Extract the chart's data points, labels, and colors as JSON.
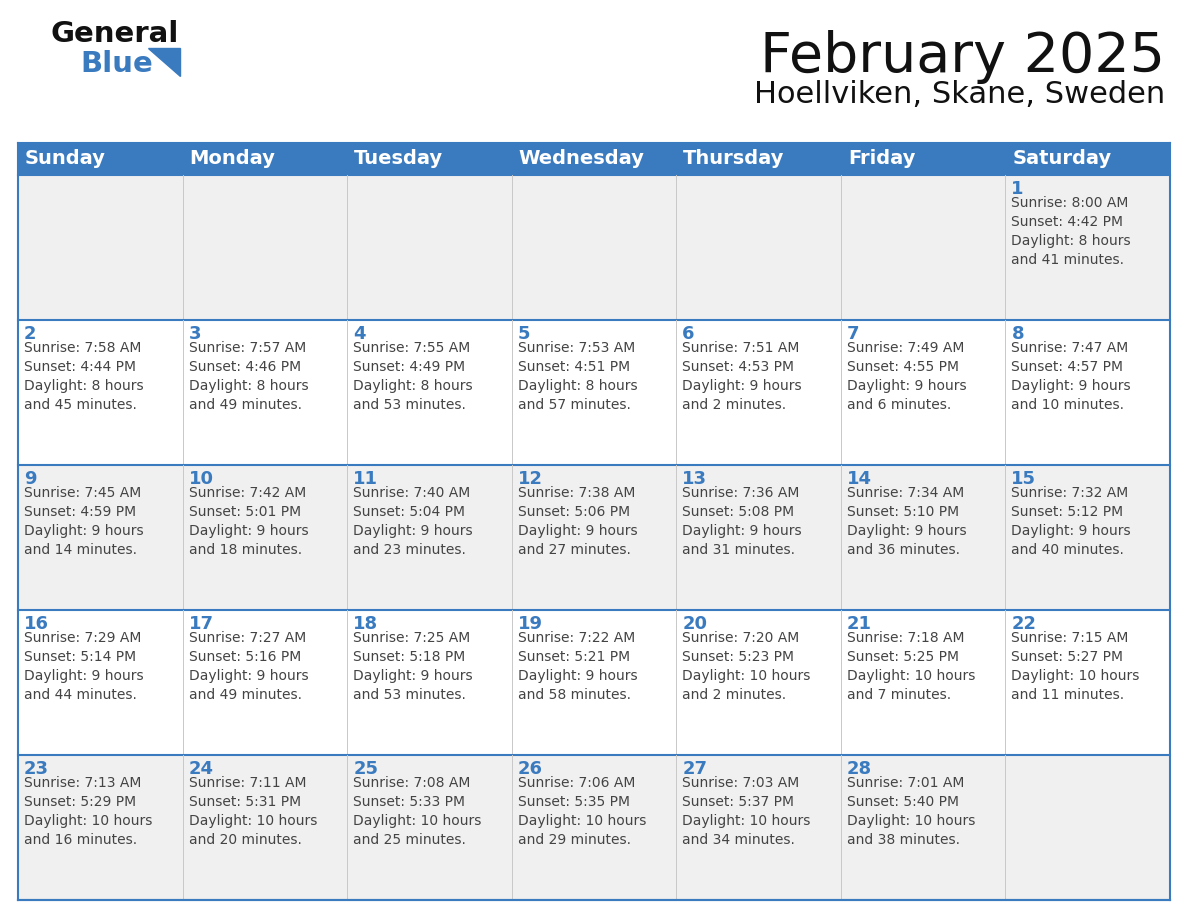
{
  "title": "February 2025",
  "subtitle": "Hoellviken, Skane, Sweden",
  "header_color": "#3a7abf",
  "header_text_color": "#ffffff",
  "weekdays": [
    "Sunday",
    "Monday",
    "Tuesday",
    "Wednesday",
    "Thursday",
    "Friday",
    "Saturday"
  ],
  "bg_color": "#ffffff",
  "cell_bg_row0": "#f0f0f0",
  "cell_bg_row1": "#ffffff",
  "cell_bg_row2": "#f0f0f0",
  "cell_bg_row3": "#ffffff",
  "cell_bg_row4": "#f0f0f0",
  "border_color": "#3a7abf",
  "day_text_color": "#3a7abf",
  "info_text_color": "#444444",
  "calendar": [
    [
      {
        "day": null,
        "info": null
      },
      {
        "day": null,
        "info": null
      },
      {
        "day": null,
        "info": null
      },
      {
        "day": null,
        "info": null
      },
      {
        "day": null,
        "info": null
      },
      {
        "day": null,
        "info": null
      },
      {
        "day": "1",
        "info": "Sunrise: 8:00 AM\nSunset: 4:42 PM\nDaylight: 8 hours\nand 41 minutes."
      }
    ],
    [
      {
        "day": "2",
        "info": "Sunrise: 7:58 AM\nSunset: 4:44 PM\nDaylight: 8 hours\nand 45 minutes."
      },
      {
        "day": "3",
        "info": "Sunrise: 7:57 AM\nSunset: 4:46 PM\nDaylight: 8 hours\nand 49 minutes."
      },
      {
        "day": "4",
        "info": "Sunrise: 7:55 AM\nSunset: 4:49 PM\nDaylight: 8 hours\nand 53 minutes."
      },
      {
        "day": "5",
        "info": "Sunrise: 7:53 AM\nSunset: 4:51 PM\nDaylight: 8 hours\nand 57 minutes."
      },
      {
        "day": "6",
        "info": "Sunrise: 7:51 AM\nSunset: 4:53 PM\nDaylight: 9 hours\nand 2 minutes."
      },
      {
        "day": "7",
        "info": "Sunrise: 7:49 AM\nSunset: 4:55 PM\nDaylight: 9 hours\nand 6 minutes."
      },
      {
        "day": "8",
        "info": "Sunrise: 7:47 AM\nSunset: 4:57 PM\nDaylight: 9 hours\nand 10 minutes."
      }
    ],
    [
      {
        "day": "9",
        "info": "Sunrise: 7:45 AM\nSunset: 4:59 PM\nDaylight: 9 hours\nand 14 minutes."
      },
      {
        "day": "10",
        "info": "Sunrise: 7:42 AM\nSunset: 5:01 PM\nDaylight: 9 hours\nand 18 minutes."
      },
      {
        "day": "11",
        "info": "Sunrise: 7:40 AM\nSunset: 5:04 PM\nDaylight: 9 hours\nand 23 minutes."
      },
      {
        "day": "12",
        "info": "Sunrise: 7:38 AM\nSunset: 5:06 PM\nDaylight: 9 hours\nand 27 minutes."
      },
      {
        "day": "13",
        "info": "Sunrise: 7:36 AM\nSunset: 5:08 PM\nDaylight: 9 hours\nand 31 minutes."
      },
      {
        "day": "14",
        "info": "Sunrise: 7:34 AM\nSunset: 5:10 PM\nDaylight: 9 hours\nand 36 minutes."
      },
      {
        "day": "15",
        "info": "Sunrise: 7:32 AM\nSunset: 5:12 PM\nDaylight: 9 hours\nand 40 minutes."
      }
    ],
    [
      {
        "day": "16",
        "info": "Sunrise: 7:29 AM\nSunset: 5:14 PM\nDaylight: 9 hours\nand 44 minutes."
      },
      {
        "day": "17",
        "info": "Sunrise: 7:27 AM\nSunset: 5:16 PM\nDaylight: 9 hours\nand 49 minutes."
      },
      {
        "day": "18",
        "info": "Sunrise: 7:25 AM\nSunset: 5:18 PM\nDaylight: 9 hours\nand 53 minutes."
      },
      {
        "day": "19",
        "info": "Sunrise: 7:22 AM\nSunset: 5:21 PM\nDaylight: 9 hours\nand 58 minutes."
      },
      {
        "day": "20",
        "info": "Sunrise: 7:20 AM\nSunset: 5:23 PM\nDaylight: 10 hours\nand 2 minutes."
      },
      {
        "day": "21",
        "info": "Sunrise: 7:18 AM\nSunset: 5:25 PM\nDaylight: 10 hours\nand 7 minutes."
      },
      {
        "day": "22",
        "info": "Sunrise: 7:15 AM\nSunset: 5:27 PM\nDaylight: 10 hours\nand 11 minutes."
      }
    ],
    [
      {
        "day": "23",
        "info": "Sunrise: 7:13 AM\nSunset: 5:29 PM\nDaylight: 10 hours\nand 16 minutes."
      },
      {
        "day": "24",
        "info": "Sunrise: 7:11 AM\nSunset: 5:31 PM\nDaylight: 10 hours\nand 20 minutes."
      },
      {
        "day": "25",
        "info": "Sunrise: 7:08 AM\nSunset: 5:33 PM\nDaylight: 10 hours\nand 25 minutes."
      },
      {
        "day": "26",
        "info": "Sunrise: 7:06 AM\nSunset: 5:35 PM\nDaylight: 10 hours\nand 29 minutes."
      },
      {
        "day": "27",
        "info": "Sunrise: 7:03 AM\nSunset: 5:37 PM\nDaylight: 10 hours\nand 34 minutes."
      },
      {
        "day": "28",
        "info": "Sunrise: 7:01 AM\nSunset: 5:40 PM\nDaylight: 10 hours\nand 38 minutes."
      },
      {
        "day": null,
        "info": null
      }
    ]
  ],
  "logo_text1": "General",
  "logo_text2": "Blue",
  "logo_color1": "#111111",
  "logo_color2": "#3a7abf",
  "logo_triangle_color": "#3a7abf",
  "title_fontsize": 40,
  "subtitle_fontsize": 22,
  "header_fontsize": 14,
  "day_fontsize": 13,
  "info_fontsize": 10
}
